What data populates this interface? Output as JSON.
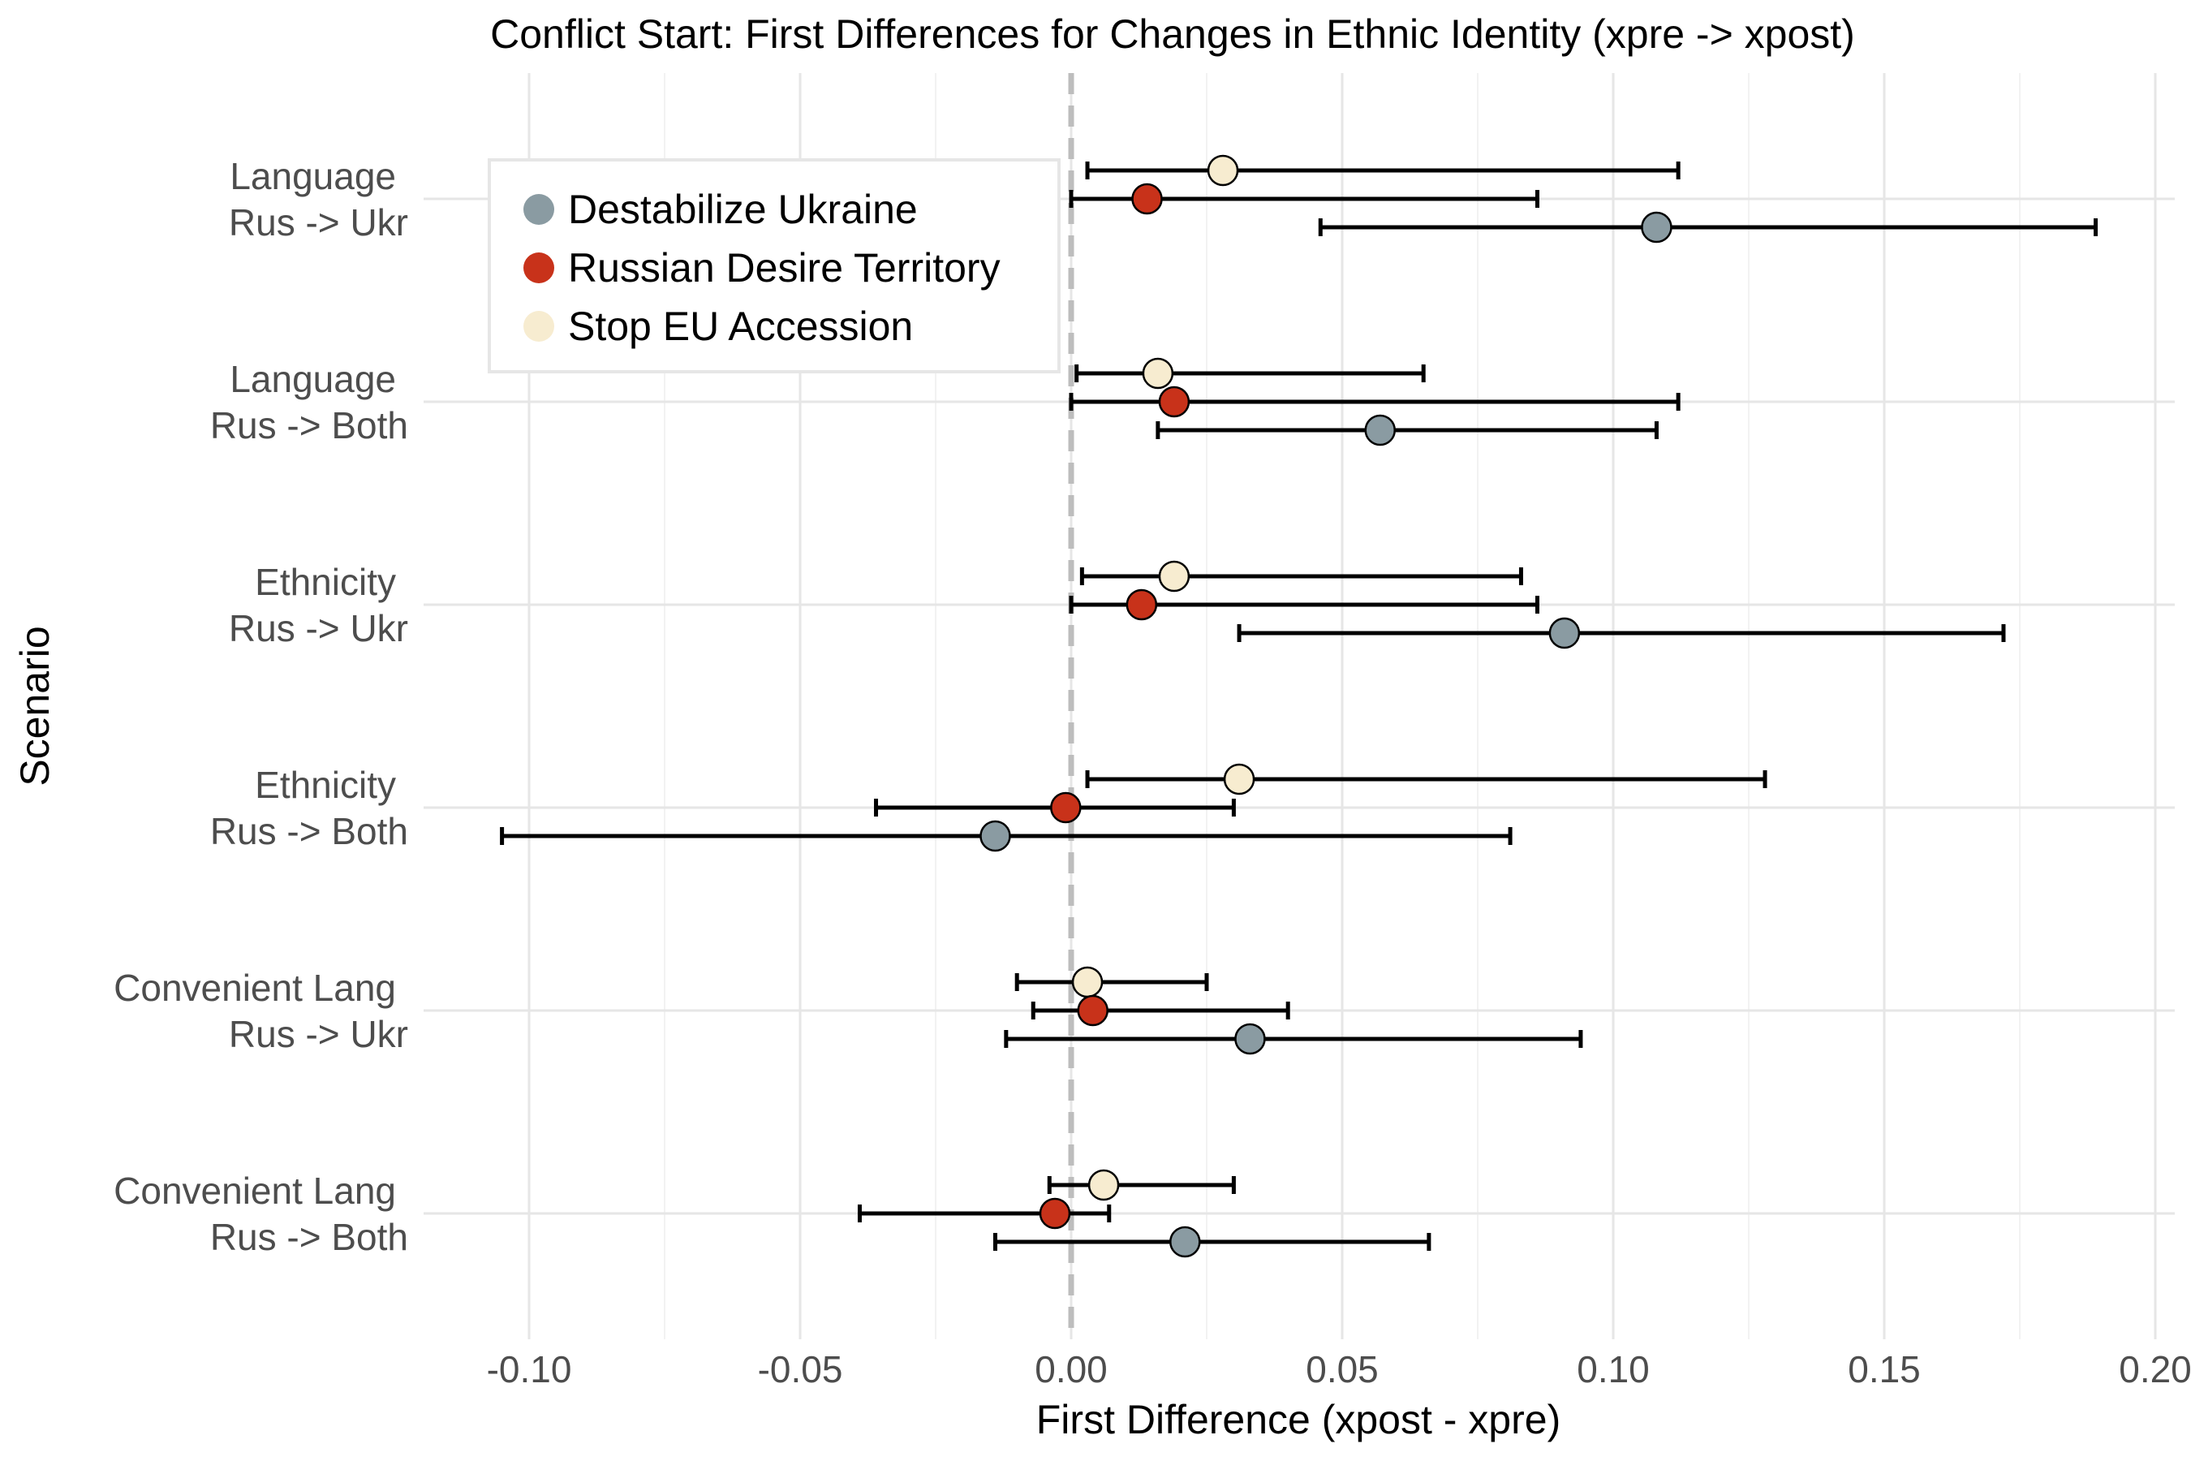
{
  "chart_data": {
    "type": "dot-and-whisker",
    "title": "Conflict Start: First Differences for Changes in Ethnic Identity (xpre -> xpost)",
    "xlabel": "First Difference (xpost - xpre)",
    "ylabel": "Scenario",
    "xlim": [
      -0.12,
      0.2
    ],
    "xticks": [
      -0.1,
      -0.05,
      0.0,
      0.05,
      0.1,
      0.15,
      0.2
    ],
    "xtick_labels": [
      "-0.10",
      "-0.05",
      "0.00",
      "0.05",
      "0.10",
      "0.15",
      "0.20"
    ],
    "reference_line": 0,
    "grid": true,
    "legend_position": "top-left",
    "categories": [
      {
        "line1": "Language",
        "line2": "Rus -> Ukr"
      },
      {
        "line1": "Language",
        "line2": "Rus -> Both"
      },
      {
        "line1": "Ethnicity",
        "line2": "Rus -> Ukr"
      },
      {
        "line1": "Ethnicity",
        "line2": "Rus -> Both"
      },
      {
        "line1": "Convenient Lang",
        "line2": "Rus -> Ukr"
      },
      {
        "line1": "Convenient Lang",
        "line2": "Rus -> Both"
      }
    ],
    "series": [
      {
        "name": "Stop EU Accession",
        "color": "#f7ecd0",
        "estimate": [
          0.028,
          0.016,
          0.019,
          0.031,
          0.003,
          0.006
        ],
        "lower": [
          0.003,
          0.001,
          0.002,
          0.003,
          -0.01,
          -0.004
        ],
        "upper": [
          0.112,
          0.065,
          0.083,
          0.128,
          0.025,
          0.03
        ]
      },
      {
        "name": "Russian Desire Territory",
        "color": "#c8321a",
        "estimate": [
          0.014,
          0.019,
          0.013,
          -0.001,
          0.004,
          -0.003
        ],
        "lower": [
          0.0,
          0.0,
          0.0,
          -0.036,
          -0.007,
          -0.039
        ],
        "upper": [
          0.086,
          0.112,
          0.086,
          0.03,
          0.04,
          0.007
        ]
      },
      {
        "name": "Destabilize Ukraine",
        "color": "#8a9ba2",
        "estimate": [
          0.108,
          0.057,
          0.091,
          -0.014,
          0.033,
          0.021
        ],
        "lower": [
          0.046,
          0.016,
          0.031,
          -0.105,
          -0.012,
          -0.014
        ],
        "upper": [
          0.189,
          0.108,
          0.172,
          0.081,
          0.094,
          0.066
        ]
      }
    ],
    "legend_order": [
      "Destabilize Ukraine",
      "Russian Desire Territory",
      "Stop EU Accession"
    ]
  }
}
